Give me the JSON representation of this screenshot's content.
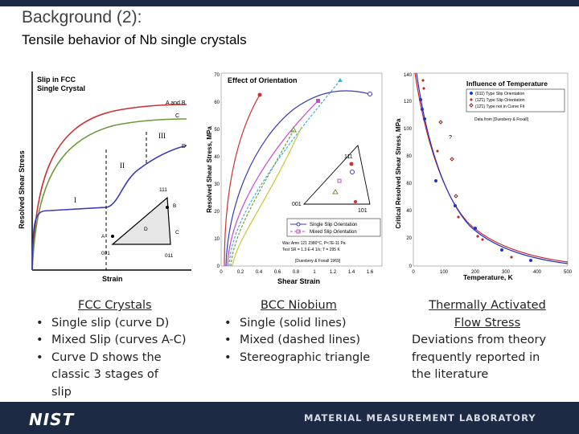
{
  "slide": {
    "title": "Background (2):",
    "subtitle": "Tensile behavior of Nb single crystals"
  },
  "fcc_panel": {
    "title_line1": "Slip in FCC",
    "title_line2": "Single Crystal",
    "ylabel": "Resolved Shear Stress",
    "xlabel": "Strain",
    "labels": [
      "A and B",
      "C",
      "D",
      "III",
      "II",
      "I"
    ],
    "triangle_labels": [
      "111",
      "001",
      "011",
      "A",
      "B",
      "C",
      "D"
    ]
  },
  "bcc_panel": {
    "title": "Effect of Orientation",
    "ylabel": "Resolved Shear Stress, MPa",
    "xlabel": "Shear Strain",
    "y_ticks": [
      "0",
      "10",
      "20",
      "30",
      "40",
      "50",
      "60",
      "70"
    ],
    "x_ticks": [
      "0",
      "0.2",
      "0.4",
      "0.6",
      "0.8",
      "1",
      "1.2",
      "1.4",
      "1.6"
    ],
    "triangle_labels": [
      "111",
      "001",
      "101"
    ],
    "legend": [
      "Single Slip Orientation",
      "Mixed Slip Orientation"
    ],
    "note_line1": "Wac Amn 121 2380°C, P<7E-11 Pa",
    "note_line2": "Test SR = 1.3 E-4 1/s; T = 295 K",
    "note_line3": "[Duesbery & Foxall 1969]"
  },
  "temp_panel": {
    "title": "Influence of Temperature",
    "ylabel": "Critical Resolved Shear Stress, MPa",
    "xlabel": "Temperature, K",
    "y_ticks": [
      "0",
      "20",
      "40",
      "60",
      "80",
      "100",
      "120",
      "140"
    ],
    "x_ticks": [
      "0",
      "100",
      "200",
      "300",
      "400",
      "500"
    ],
    "legend": [
      "(011) Type Slip Orientation",
      "(12̄1) Type Slip Orientation",
      "(12̄1) Type not in Curve Fit"
    ],
    "source": "Data from [Duesbery & Foxall]",
    "annotation": "?",
    "colors": {
      "series1": "#2233cc",
      "series2": "#cc2222",
      "series3": "#882222"
    }
  },
  "captions": {
    "col1": {
      "head": "FCC Crystals",
      "items": [
        "Single slip (curve D)",
        "Mixed Slip (curves A-C)",
        "Curve D shows the classic 3 stages of slip"
      ]
    },
    "col2": {
      "head": "BCC Niobium",
      "items": [
        "Single (solid lines)",
        "Mixed (dashed lines)",
        "Stereographic triangle"
      ]
    },
    "col3": {
      "head1": "Thermally Activated",
      "head2": "Flow Stress",
      "line1": "Deviations from theory",
      "line2": "frequently reported in",
      "line3": "the literature"
    }
  },
  "footer": {
    "logo": "NIST",
    "lab": "MATERIAL MEASUREMENT LABORATORY"
  }
}
